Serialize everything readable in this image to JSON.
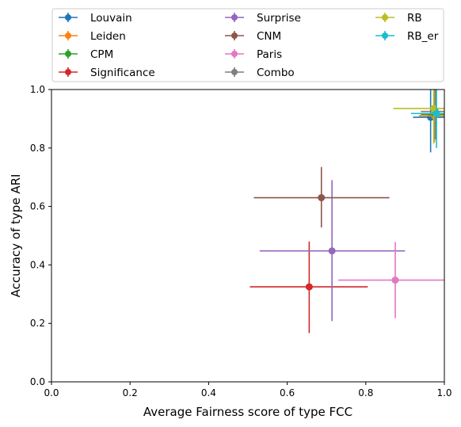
{
  "chart_data": {
    "type": "scatter",
    "xlabel": "Average Fairness score of type FCC",
    "ylabel": "Accuracy of type ARI",
    "xlim": [
      0,
      1
    ],
    "ylim": [
      0,
      1
    ],
    "xticks": [
      0.0,
      0.2,
      0.4,
      0.6,
      0.8,
      1.0
    ],
    "yticks": [
      0.0,
      0.2,
      0.4,
      0.6,
      0.8,
      1.0
    ],
    "xtick_labels": [
      "0.0",
      "0.2",
      "0.4",
      "0.6",
      "0.8",
      "1.0"
    ],
    "ytick_labels": [
      "0.0",
      "0.2",
      "0.4",
      "0.6",
      "0.8",
      "1.0"
    ],
    "grid": false,
    "legend_position": "top, above plot, 3 columns",
    "series": [
      {
        "name": "Louvain",
        "color": "#1f77b4",
        "x": 0.965,
        "y": 0.905,
        "xerr": [
          0.92,
          1.0
        ],
        "yerr": [
          0.785,
          1.0
        ]
      },
      {
        "name": "Leiden",
        "color": "#ff7f0e",
        "x": 0.975,
        "y": 0.91,
        "xerr": [
          0.935,
          1.0
        ],
        "yerr": [
          0.82,
          1.0
        ]
      },
      {
        "name": "CPM",
        "color": "#2ca02c",
        "x": 0.977,
        "y": 0.915,
        "xerr": [
          0.94,
          1.0
        ],
        "yerr": [
          0.83,
          1.0
        ]
      },
      {
        "name": "Significance",
        "color": "#d62728",
        "x": 0.656,
        "y": 0.325,
        "xerr": [
          0.505,
          0.805
        ],
        "yerr": [
          0.167,
          0.48
        ]
      },
      {
        "name": "Surprise",
        "color": "#9467bd",
        "x": 0.714,
        "y": 0.448,
        "xerr": [
          0.53,
          0.9
        ],
        "yerr": [
          0.208,
          0.69
        ]
      },
      {
        "name": "CNM",
        "color": "#8c564b",
        "x": 0.687,
        "y": 0.63,
        "xerr": [
          0.515,
          0.86
        ],
        "yerr": [
          0.528,
          0.735
        ]
      },
      {
        "name": "Paris",
        "color": "#e377c2",
        "x": 0.875,
        "y": 0.348,
        "xerr": [
          0.73,
          1.0
        ],
        "yerr": [
          0.218,
          0.478
        ]
      },
      {
        "name": "Combo",
        "color": "#7f7f7f",
        "x": 0.977,
        "y": 0.925,
        "xerr": [
          0.94,
          1.0
        ],
        "yerr": [
          0.83,
          1.0
        ]
      },
      {
        "name": "RB",
        "color": "#bcbd22",
        "x": 0.973,
        "y": 0.935,
        "xerr": [
          0.87,
          1.0
        ],
        "yerr": [
          0.815,
          1.0
        ]
      },
      {
        "name": "RB_er",
        "color": "#17becf",
        "x": 0.98,
        "y": 0.918,
        "xerr": [
          0.915,
          1.0
        ],
        "yerr": [
          0.8,
          1.0
        ]
      }
    ]
  }
}
